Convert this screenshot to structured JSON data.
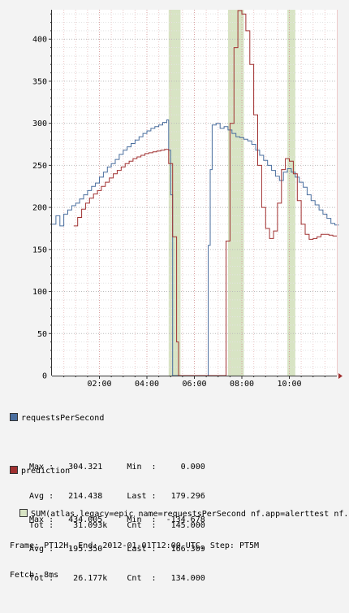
{
  "chart_data": {
    "type": "line",
    "xlabel": "",
    "ylabel": "",
    "ylim": [
      0,
      435
    ],
    "xlim": [
      "00:00",
      "12:00"
    ],
    "x_ticks": [
      "02:00",
      "04:00",
      "06:00",
      "08:00",
      "10:00"
    ],
    "y_ticks": [
      "0",
      "50",
      "100",
      "150",
      "200",
      "250",
      "300",
      "350",
      "400"
    ],
    "grid": true,
    "step_minutes": 5,
    "series": [
      {
        "name": "requestsPerSecond",
        "color": "#4a6e9e",
        "points": [
          [
            "00:00",
            180
          ],
          [
            "00:10",
            190
          ],
          [
            "00:20",
            178
          ],
          [
            "00:30",
            192
          ],
          [
            "00:40",
            197
          ],
          [
            "00:50",
            202
          ],
          [
            "01:00",
            205
          ],
          [
            "01:10",
            210
          ],
          [
            "01:20",
            215
          ],
          [
            "01:30",
            220
          ],
          [
            "01:40",
            225
          ],
          [
            "01:50",
            229
          ],
          [
            "02:00",
            236
          ],
          [
            "02:10",
            242
          ],
          [
            "02:20",
            248
          ],
          [
            "02:30",
            252
          ],
          [
            "02:40",
            257
          ],
          [
            "02:50",
            263
          ],
          [
            "03:00",
            268
          ],
          [
            "03:10",
            272
          ],
          [
            "03:20",
            276
          ],
          [
            "03:30",
            280
          ],
          [
            "03:40",
            284
          ],
          [
            "03:50",
            288
          ],
          [
            "04:00",
            291
          ],
          [
            "04:10",
            294
          ],
          [
            "04:20",
            296
          ],
          [
            "04:30",
            298
          ],
          [
            "04:40",
            301
          ],
          [
            "04:50",
            304
          ],
          [
            "04:55",
            268
          ],
          [
            "05:00",
            215
          ],
          [
            "05:05",
            0
          ],
          [
            "06:25",
            0
          ],
          [
            "06:35",
            155
          ],
          [
            "06:40",
            245
          ],
          [
            "06:45",
            298
          ],
          [
            "06:55",
            300
          ],
          [
            "07:05",
            294
          ],
          [
            "07:15",
            296
          ],
          [
            "07:25",
            292
          ],
          [
            "07:35",
            288
          ],
          [
            "07:45",
            284
          ],
          [
            "07:55",
            283
          ],
          [
            "08:05",
            281
          ],
          [
            "08:15",
            279
          ],
          [
            "08:25",
            275
          ],
          [
            "08:35",
            268
          ],
          [
            "08:45",
            262
          ],
          [
            "08:55",
            256
          ],
          [
            "09:05",
            250
          ],
          [
            "09:15",
            244
          ],
          [
            "09:25",
            237
          ],
          [
            "09:35",
            232
          ],
          [
            "09:45",
            242
          ],
          [
            "09:55",
            246
          ],
          [
            "10:05",
            242
          ],
          [
            "10:15",
            236
          ],
          [
            "10:25",
            230
          ],
          [
            "10:35",
            224
          ],
          [
            "10:45",
            215
          ],
          [
            "10:55",
            208
          ],
          [
            "11:05",
            203
          ],
          [
            "11:15",
            197
          ],
          [
            "11:25",
            192
          ],
          [
            "11:35",
            187
          ],
          [
            "11:45",
            181
          ],
          [
            "11:55",
            179
          ]
        ]
      },
      {
        "name": "prediction",
        "color": "#a03030",
        "points": [
          [
            "00:55",
            178
          ],
          [
            "01:05",
            188
          ],
          [
            "01:15",
            198
          ],
          [
            "01:25",
            205
          ],
          [
            "01:35",
            211
          ],
          [
            "01:45",
            216
          ],
          [
            "01:55",
            220
          ],
          [
            "02:05",
            225
          ],
          [
            "02:15",
            230
          ],
          [
            "02:25",
            235
          ],
          [
            "02:35",
            240
          ],
          [
            "02:45",
            244
          ],
          [
            "02:55",
            248
          ],
          [
            "03:05",
            252
          ],
          [
            "03:15",
            255
          ],
          [
            "03:25",
            258
          ],
          [
            "03:35",
            260
          ],
          [
            "03:45",
            262
          ],
          [
            "03:55",
            264
          ],
          [
            "04:05",
            265
          ],
          [
            "04:15",
            266
          ],
          [
            "04:25",
            267
          ],
          [
            "04:35",
            268
          ],
          [
            "04:45",
            269
          ],
          [
            "04:55",
            252
          ],
          [
            "05:05",
            165
          ],
          [
            "05:15",
            40
          ],
          [
            "05:20",
            0
          ],
          [
            "07:05",
            0
          ],
          [
            "07:20",
            160
          ],
          [
            "07:30",
            300
          ],
          [
            "07:40",
            390
          ],
          [
            "07:50",
            434
          ],
          [
            "08:00",
            430
          ],
          [
            "08:10",
            410
          ],
          [
            "08:20",
            370
          ],
          [
            "08:30",
            310
          ],
          [
            "08:40",
            250
          ],
          [
            "08:50",
            200
          ],
          [
            "09:00",
            175
          ],
          [
            "09:10",
            163
          ],
          [
            "09:20",
            172
          ],
          [
            "09:30",
            205
          ],
          [
            "09:40",
            245
          ],
          [
            "09:50",
            258
          ],
          [
            "10:00",
            255
          ],
          [
            "10:10",
            240
          ],
          [
            "10:20",
            208
          ],
          [
            "10:30",
            180
          ],
          [
            "10:40",
            168
          ],
          [
            "10:50",
            162
          ],
          [
            "11:00",
            163
          ],
          [
            "11:10",
            165
          ],
          [
            "11:20",
            168
          ],
          [
            "11:30",
            168
          ],
          [
            "11:40",
            167
          ],
          [
            "11:50",
            166
          ]
        ]
      }
    ],
    "highlights": {
      "color": "#d8e4c4",
      "ranges": [
        [
          "04:55",
          "05:25"
        ],
        [
          "07:25",
          "08:05"
        ],
        [
          "09:55",
          "10:15"
        ]
      ]
    }
  },
  "legend": [
    {
      "name": "requestsPerSecond",
      "color": "#4a6e9e",
      "rows": [
        "Max :   304.321     Min  :     0.000",
        "Avg :   214.438     Last :   179.296",
        "Tot :    31.093k    Cnt  :   145.000"
      ]
    },
    {
      "name": "prediction",
      "color": "#a03030",
      "rows": [
        "Max :   434.005     Min  :  -134.678",
        "Avg :   195.350     Last :   166.309",
        "Tot :    26.177k    Cnt  :   134.000"
      ]
    }
  ],
  "signal": {
    "label": "SUM(atlas.legacy=epic name=requestsPerSecond nf.app=alerttest nf.asg",
    "color": "#d8e4c4"
  },
  "footer": {
    "frame": "Frame: PT12H, End: 2012-01-01T12:00 UTC, Step: PT5M",
    "fetch": "Fetch: 8ms"
  }
}
